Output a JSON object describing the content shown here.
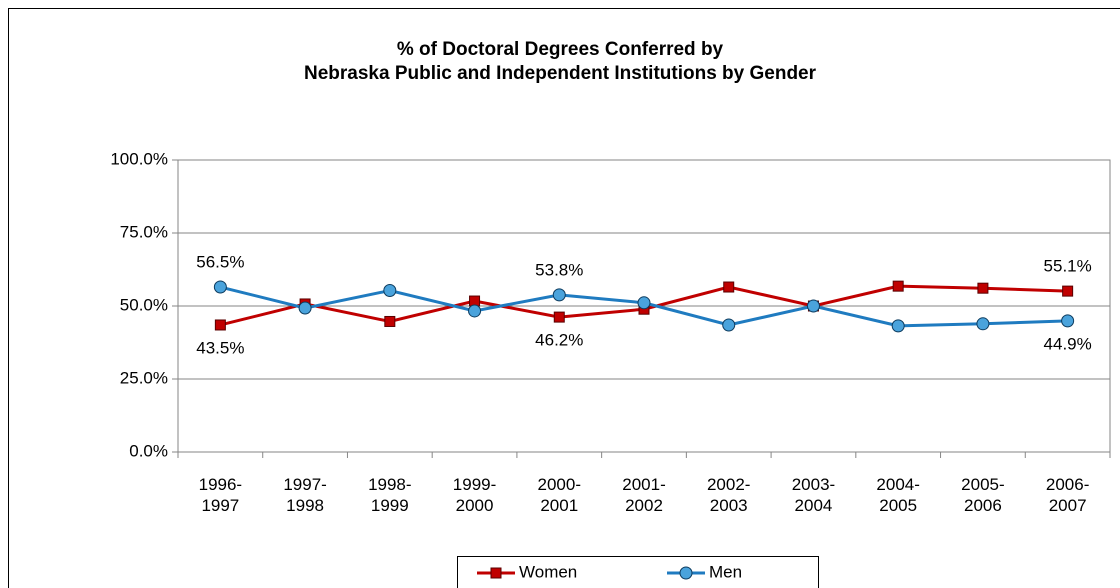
{
  "chart_data": {
    "type": "line",
    "title": "% of Doctoral Degrees Conferred by\nNebraska Public and Independent Institutions by Gender",
    "categories": [
      "1996-\n1997",
      "1997-\n1998",
      "1998-\n1999",
      "1999-\n2000",
      "2000-\n2001",
      "2001-\n2002",
      "2002-\n2003",
      "2003-\n2004",
      "2004-\n2005",
      "2005-\n2006",
      "2006-\n2007"
    ],
    "series": [
      {
        "name": "Women",
        "color": "#c00000",
        "marker": "square",
        "values": [
          43.5,
          50.7,
          44.7,
          51.7,
          46.2,
          48.9,
          56.5,
          50.0,
          56.8,
          56.1,
          55.1
        ],
        "value_labels": [
          "43.5%",
          null,
          null,
          null,
          "46.2%",
          null,
          null,
          null,
          null,
          null,
          "55.1%"
        ]
      },
      {
        "name": "Men",
        "color": "#1f7bc0",
        "marker": "circle",
        "values": [
          56.5,
          49.3,
          55.3,
          48.3,
          53.8,
          51.1,
          43.5,
          50.0,
          43.2,
          43.9,
          44.9
        ],
        "value_labels": [
          "56.5%",
          null,
          null,
          null,
          "53.8%",
          null,
          null,
          null,
          null,
          null,
          "44.9%"
        ]
      }
    ],
    "ylim": [
      0,
      100
    ],
    "yticks": [
      {
        "value": 0,
        "label": "0.0%"
      },
      {
        "value": 25,
        "label": "25.0%"
      },
      {
        "value": 50,
        "label": "50.0%"
      },
      {
        "value": 75,
        "label": "75.0%"
      },
      {
        "value": 100,
        "label": "100.0%"
      }
    ],
    "grid": true,
    "legend": "bottom"
  }
}
